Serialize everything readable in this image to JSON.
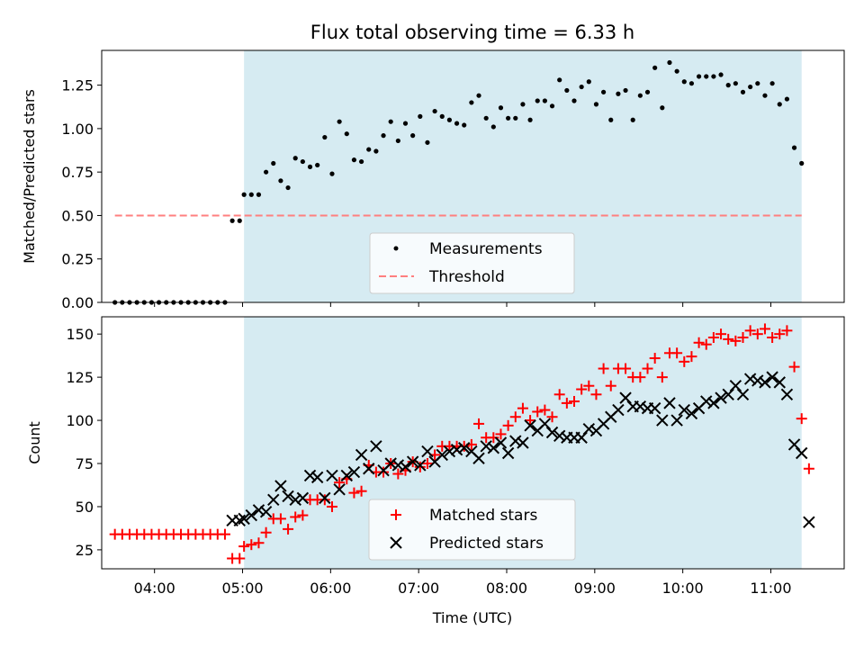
{
  "chart_data": [
    {
      "type": "scatter",
      "title": "Flux total observing time = 6.33 h",
      "xlabel": "",
      "ylabel": "Matched/Predicted stars",
      "xlim": [
        "03:24",
        "11:50"
      ],
      "ylim": [
        0,
        1.45
      ],
      "y_ticks": [
        "0.00",
        "0.25",
        "0.50",
        "0.75",
        "1.00",
        "1.25"
      ],
      "highlight_span": [
        "05:01",
        "11:21"
      ],
      "threshold": {
        "value": 0.5,
        "x_range": [
          "03:33",
          "11:21"
        ],
        "color": "#ff7f7f"
      },
      "legend": {
        "placement": "lower-center",
        "entries": [
          {
            "label": "Measurements",
            "marker": "dot",
            "color": "#000000"
          },
          {
            "label": "Threshold",
            "marker": "dashed-line",
            "color": "#ff7f7f"
          }
        ]
      },
      "series": [
        {
          "name": "Measurements",
          "x": [
            "03:33",
            "03:38",
            "03:43",
            "03:48",
            "03:53",
            "03:58",
            "04:03",
            "04:08",
            "04:13",
            "04:18",
            "04:23",
            "04:28",
            "04:33",
            "04:38",
            "04:43",
            "04:48",
            "04:53",
            "04:58",
            "05:01",
            "05:06",
            "05:11",
            "05:16",
            "05:21",
            "05:26",
            "05:31",
            "05:36",
            "05:41",
            "05:46",
            "05:51",
            "05:56",
            "06:01",
            "06:06",
            "06:11",
            "06:16",
            "06:21",
            "06:26",
            "06:31",
            "06:36",
            "06:41",
            "06:46",
            "06:51",
            "06:56",
            "07:01",
            "07:06",
            "07:11",
            "07:16",
            "07:21",
            "07:26",
            "07:31",
            "07:36",
            "07:41",
            "07:46",
            "07:51",
            "07:56",
            "08:01",
            "08:06",
            "08:11",
            "08:16",
            "08:21",
            "08:26",
            "08:31",
            "08:36",
            "08:41",
            "08:46",
            "08:51",
            "08:56",
            "09:01",
            "09:06",
            "09:11",
            "09:16",
            "09:21",
            "09:26",
            "09:31",
            "09:36",
            "09:41",
            "09:46",
            "09:51",
            "09:56",
            "10:01",
            "10:06",
            "10:11",
            "10:16",
            "10:21",
            "10:26",
            "10:31",
            "10:36",
            "10:41",
            "10:46",
            "10:51",
            "10:56",
            "11:01",
            "11:06",
            "11:11",
            "11:16",
            "11:21"
          ],
          "y": [
            0,
            0,
            0,
            0,
            0,
            0,
            0,
            0,
            0,
            0,
            0,
            0,
            0,
            0,
            0,
            0,
            0.47,
            0.47,
            0.62,
            0.62,
            0.62,
            0.75,
            0.8,
            0.7,
            0.66,
            0.83,
            0.81,
            0.78,
            0.79,
            0.95,
            0.74,
            1.04,
            0.97,
            0.82,
            0.81,
            0.88,
            0.87,
            0.96,
            1.04,
            0.93,
            1.03,
            0.96,
            1.07,
            0.92,
            1.1,
            1.07,
            1.05,
            1.03,
            1.02,
            1.15,
            1.19,
            1.06,
            1.01,
            1.12,
            1.06,
            1.06,
            1.14,
            1.05,
            1.16,
            1.16,
            1.13,
            1.28,
            1.22,
            1.16,
            1.24,
            1.27,
            1.14,
            1.21,
            1.05,
            1.2,
            1.22,
            1.05,
            1.19,
            1.21,
            1.35,
            1.12,
            1.38,
            1.33,
            1.27,
            1.26,
            1.3,
            1.3,
            1.3,
            1.31,
            1.25,
            1.26,
            1.21,
            1.24,
            1.26,
            1.19,
            1.26,
            1.14,
            1.17,
            0.89,
            0.8
          ]
        }
      ]
    },
    {
      "type": "scatter",
      "title": "",
      "xlabel": "Time (UTC)",
      "ylabel": "Count",
      "xlim": [
        "03:24",
        "11:50"
      ],
      "ylim": [
        14,
        160
      ],
      "x_ticks": [
        "04:00",
        "05:00",
        "06:00",
        "07:00",
        "08:00",
        "09:00",
        "10:00",
        "11:00"
      ],
      "y_ticks": [
        "25",
        "50",
        "75",
        "100",
        "125",
        "150"
      ],
      "highlight_span": [
        "05:01",
        "11:21"
      ],
      "legend": {
        "placement": "lower-center",
        "entries": [
          {
            "label": "Matched stars",
            "marker": "plus",
            "color": "#ff0000"
          },
          {
            "label": "Predicted stars",
            "marker": "x",
            "color": "#000000"
          }
        ]
      },
      "series": [
        {
          "name": "Matched stars",
          "x": [
            "03:33",
            "03:38",
            "03:43",
            "03:48",
            "03:53",
            "03:58",
            "04:03",
            "04:08",
            "04:13",
            "04:18",
            "04:23",
            "04:28",
            "04:33",
            "04:38",
            "04:43",
            "04:48",
            "04:53",
            "04:58",
            "05:01",
            "05:06",
            "05:11",
            "05:16",
            "05:21",
            "05:26",
            "05:31",
            "05:36",
            "05:41",
            "05:46",
            "05:51",
            "05:56",
            "06:01",
            "06:06",
            "06:11",
            "06:16",
            "06:21",
            "06:26",
            "06:31",
            "06:36",
            "06:41",
            "06:46",
            "06:51",
            "06:56",
            "07:01",
            "07:06",
            "07:11",
            "07:16",
            "07:21",
            "07:26",
            "07:31",
            "07:36",
            "07:41",
            "07:46",
            "07:51",
            "07:56",
            "08:01",
            "08:06",
            "08:11",
            "08:16",
            "08:21",
            "08:26",
            "08:31",
            "08:36",
            "08:41",
            "08:46",
            "08:51",
            "08:56",
            "09:01",
            "09:06",
            "09:11",
            "09:16",
            "09:21",
            "09:26",
            "09:31",
            "09:36",
            "09:41",
            "09:46",
            "09:51",
            "09:56",
            "10:01",
            "10:06",
            "10:11",
            "10:16",
            "10:21",
            "10:26",
            "10:31",
            "10:36",
            "10:41",
            "10:46",
            "10:51",
            "10:56",
            "11:01",
            "11:06",
            "11:11",
            "11:16",
            "11:21",
            "11:26"
          ],
          "y": [
            34,
            34,
            34,
            34,
            34,
            34,
            34,
            34,
            34,
            34,
            34,
            34,
            34,
            34,
            34,
            34,
            20,
            20,
            27,
            28,
            29,
            35,
            43,
            43,
            37,
            44,
            45,
            54,
            54,
            54,
            50,
            64,
            66,
            58,
            59,
            74,
            70,
            70,
            75,
            69,
            71,
            76,
            73,
            75,
            80,
            85,
            85,
            85,
            85,
            86,
            98,
            90,
            90,
            92,
            97,
            102,
            107,
            100,
            105,
            106,
            102,
            115,
            110,
            111,
            118,
            120,
            115,
            130,
            120,
            130,
            130,
            125,
            125,
            130,
            136,
            125,
            139,
            139,
            134,
            137,
            145,
            144,
            148,
            150,
            147,
            146,
            148,
            152,
            150,
            153,
            148,
            150,
            152,
            131,
            101,
            72
          ]
        },
        {
          "name": "Predicted stars",
          "x": [
            "04:53",
            "04:58",
            "05:01",
            "05:06",
            "05:11",
            "05:16",
            "05:21",
            "05:26",
            "05:31",
            "05:36",
            "05:41",
            "05:46",
            "05:51",
            "05:56",
            "06:01",
            "06:06",
            "06:11",
            "06:16",
            "06:21",
            "06:26",
            "06:31",
            "06:36",
            "06:41",
            "06:46",
            "06:51",
            "06:56",
            "07:01",
            "07:06",
            "07:11",
            "07:16",
            "07:21",
            "07:26",
            "07:31",
            "07:36",
            "07:41",
            "07:46",
            "07:51",
            "07:56",
            "08:01",
            "08:06",
            "08:11",
            "08:16",
            "08:21",
            "08:26",
            "08:31",
            "08:36",
            "08:41",
            "08:46",
            "08:51",
            "08:56",
            "09:01",
            "09:06",
            "09:11",
            "09:16",
            "09:21",
            "09:26",
            "09:31",
            "09:36",
            "09:41",
            "09:46",
            "09:51",
            "09:56",
            "10:01",
            "10:06",
            "10:11",
            "10:16",
            "10:21",
            "10:26",
            "10:31",
            "10:36",
            "10:41",
            "10:46",
            "10:51",
            "10:56",
            "11:01",
            "11:06",
            "11:11",
            "11:16",
            "11:21",
            "11:26"
          ],
          "y": [
            42,
            42,
            43,
            45,
            48,
            47,
            54,
            62,
            56,
            54,
            55,
            68,
            67,
            55,
            68,
            60,
            68,
            70,
            80,
            72,
            85,
            71,
            75,
            74,
            73,
            76,
            74,
            82,
            76,
            80,
            82,
            83,
            84,
            82,
            78,
            85,
            84,
            87,
            81,
            88,
            87,
            97,
            94,
            98,
            93,
            91,
            90,
            90,
            90,
            95,
            94,
            98,
            102,
            106,
            113,
            108,
            108,
            107,
            107,
            100,
            110,
            100,
            106,
            104,
            107,
            111,
            110,
            113,
            115,
            120,
            115,
            124,
            123,
            122,
            125,
            122,
            115,
            86,
            81,
            41
          ]
        }
      ]
    }
  ]
}
